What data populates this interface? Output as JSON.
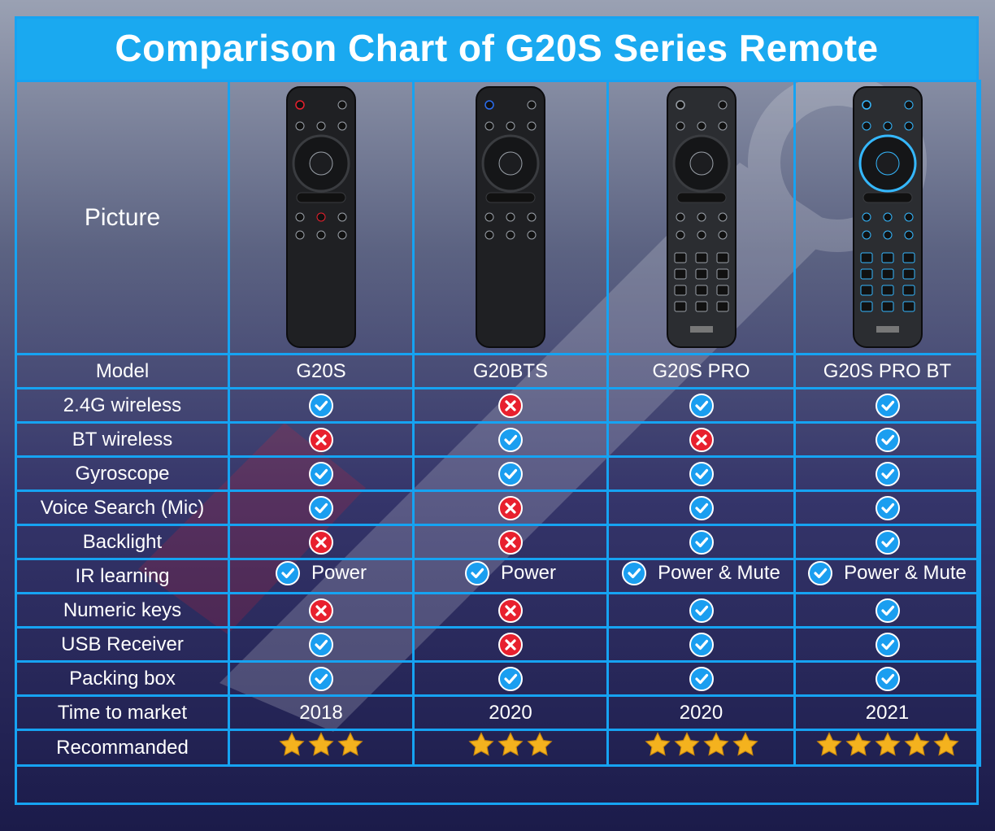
{
  "title": "Comparison Chart of G20S Series Remote",
  "row_labels": {
    "picture": "Picture",
    "model": "Model",
    "wireless_24g": "2.4G wireless",
    "bt_wireless": "BT wireless",
    "gyroscope": "Gyroscope",
    "voice_search": "Voice Search (Mic)",
    "backlight": "Backlight",
    "ir_learning": "IR learning",
    "numeric_keys": "Numeric keys",
    "usb_receiver": "USB Receiver",
    "packing_box": "Packing box",
    "time_to_market": "Time to market",
    "recommended": "Recommanded"
  },
  "products": [
    {
      "model": "G20S",
      "wireless_24g": true,
      "bt_wireless": false,
      "gyroscope": true,
      "voice_search": true,
      "backlight": false,
      "ir_learning": "Power",
      "numeric_keys": false,
      "usb_receiver": true,
      "packing_box": true,
      "time_to_market": "2018",
      "stars": 3
    },
    {
      "model": "G20BTS",
      "wireless_24g": false,
      "bt_wireless": true,
      "gyroscope": true,
      "voice_search": false,
      "backlight": false,
      "ir_learning": "Power",
      "numeric_keys": false,
      "usb_receiver": false,
      "packing_box": true,
      "time_to_market": "2020",
      "stars": 3
    },
    {
      "model": "G20S PRO",
      "wireless_24g": true,
      "bt_wireless": false,
      "gyroscope": true,
      "voice_search": true,
      "backlight": true,
      "ir_learning": "Power & Mute",
      "numeric_keys": true,
      "usb_receiver": true,
      "packing_box": true,
      "time_to_market": "2020",
      "stars": 4
    },
    {
      "model": "G20S PRO BT",
      "wireless_24g": true,
      "bt_wireless": true,
      "gyroscope": true,
      "voice_search": true,
      "backlight": true,
      "ir_learning": "Power & Mute",
      "numeric_keys": true,
      "usb_receiver": true,
      "packing_box": true,
      "time_to_market": "2021",
      "stars": 5
    }
  ],
  "colors": {
    "accent": "#1aa9f0",
    "yes": "#1a9ef0",
    "no": "#e8202e",
    "star": "#f4b21e"
  }
}
